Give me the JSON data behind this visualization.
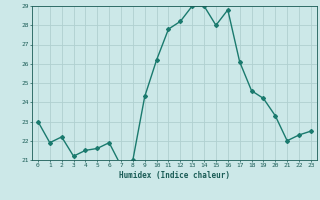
{
  "x": [
    0,
    1,
    2,
    3,
    4,
    5,
    6,
    7,
    8,
    9,
    10,
    11,
    12,
    13,
    14,
    15,
    16,
    17,
    18,
    19,
    20,
    21,
    22,
    23
  ],
  "y": [
    23.0,
    21.9,
    22.2,
    21.2,
    21.5,
    21.6,
    21.9,
    20.7,
    21.0,
    24.3,
    26.2,
    27.8,
    28.2,
    29.0,
    29.0,
    28.0,
    28.8,
    26.1,
    24.6,
    24.2,
    23.3,
    22.0,
    22.3,
    22.5
  ],
  "ylim": [
    21,
    29
  ],
  "yticks": [
    21,
    22,
    23,
    24,
    25,
    26,
    27,
    28,
    29
  ],
  "xlim": [
    -0.5,
    23.5
  ],
  "xticks": [
    0,
    1,
    2,
    3,
    4,
    5,
    6,
    7,
    8,
    9,
    10,
    11,
    12,
    13,
    14,
    15,
    16,
    17,
    18,
    19,
    20,
    21,
    22,
    23
  ],
  "xlabel": "Humidex (Indice chaleur)",
  "line_color": "#1a7a6e",
  "marker": "D",
  "marker_size": 2,
  "bg_color": "#cce8e8",
  "grid_color": "#b0d0d0",
  "tick_color": "#1a5c56",
  "label_color": "#1a5c56",
  "linewidth": 1.0
}
